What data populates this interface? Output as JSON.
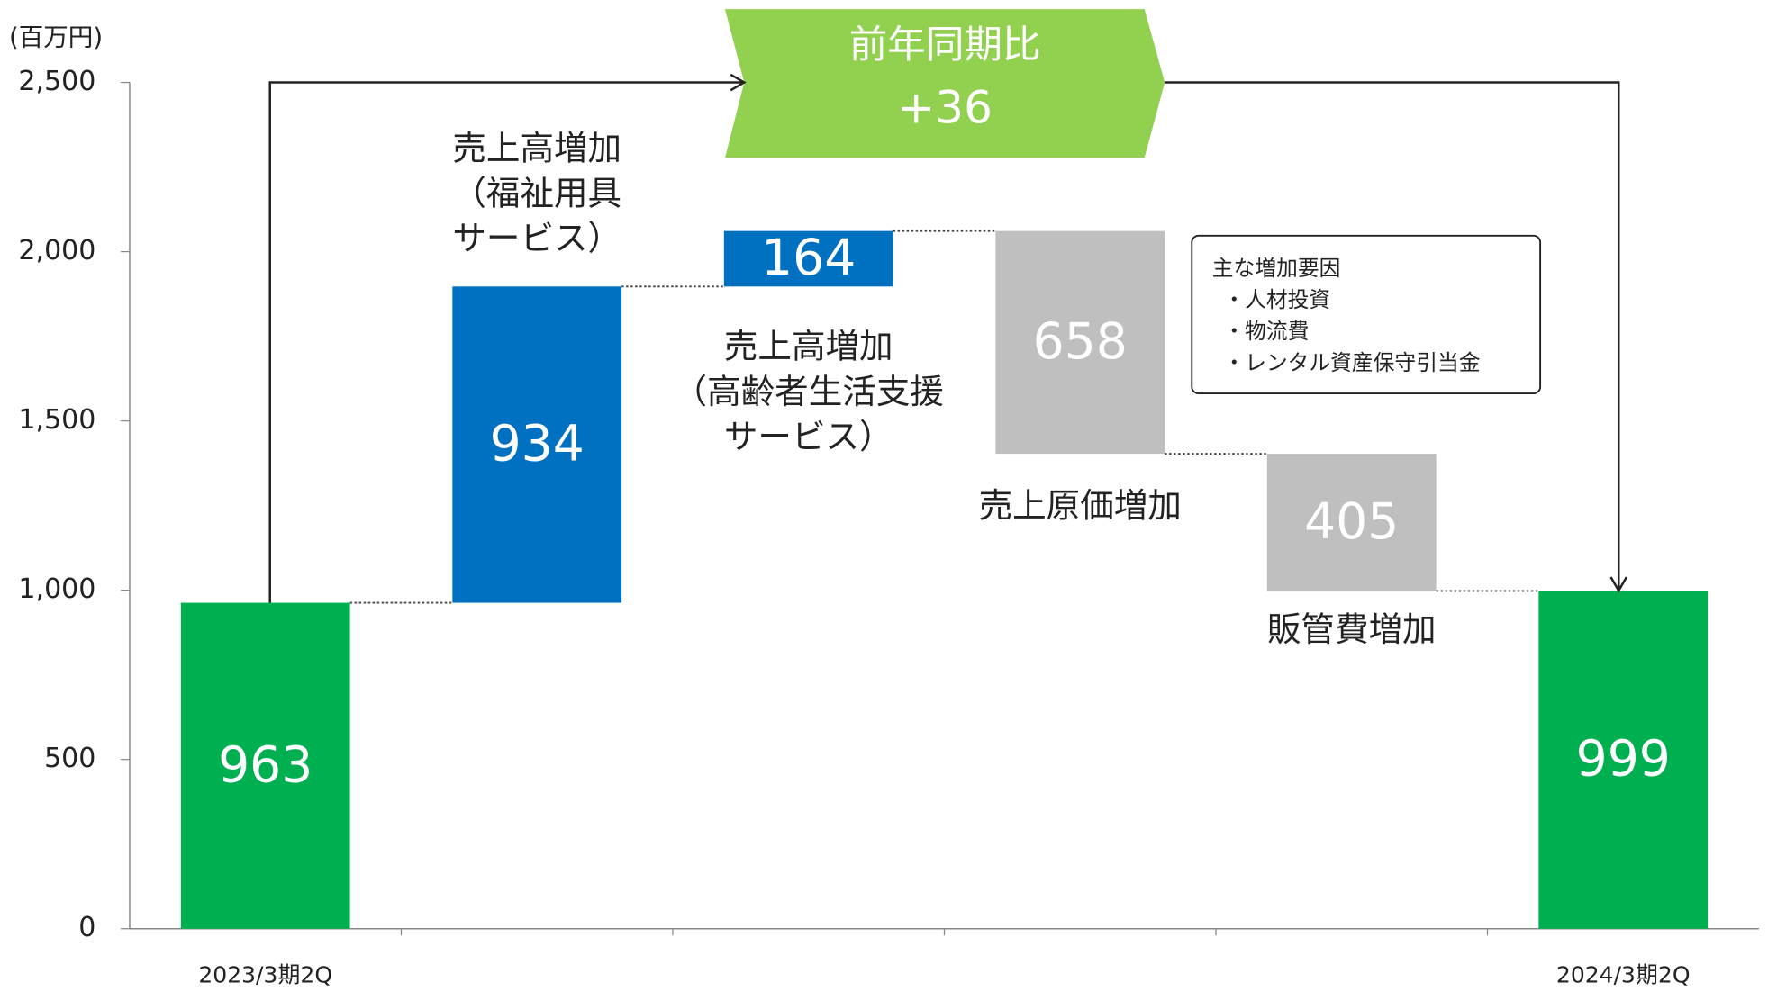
{
  "chart_data": {
    "type": "waterfall",
    "unit_label": "(百万円)",
    "categories": [
      "2023/3期2Q",
      null,
      null,
      null,
      null,
      "2024/3期2Q"
    ],
    "values": [
      963,
      934,
      164,
      658,
      405,
      999
    ],
    "measure": [
      "absolute",
      "increase",
      "increase",
      "decrease",
      "decrease",
      "absolute"
    ],
    "colors": [
      "#00b050",
      "#0070c0",
      "#0070c0",
      "#bfbfbf",
      "#bfbfbf",
      "#00b050"
    ],
    "step_labels": [
      null,
      [
        "売上高増加",
        "（福祉用具",
        " サービス）"
      ],
      [
        "売上高増加",
        "（高齢者生活支援",
        "サービス）"
      ],
      [
        "売上原価増加"
      ],
      [
        "販管費増加"
      ],
      null
    ],
    "ylim": [
      0,
      2500
    ],
    "yticks": [
      0,
      500,
      {
        "value": 1000,
        "label": "1,000"
      },
      {
        "value": 1500,
        "label": "1,500"
      },
      {
        "value": 2000,
        "label": "2,000"
      },
      {
        "value": 2500,
        "label": "2,500"
      }
    ],
    "comparison": {
      "title": "前年同期比",
      "difference": {
        "value": 36,
        "label": "+36"
      }
    },
    "note": {
      "title": "主な増加要因",
      "items": [
        "・人材投資",
        "・物流費",
        "・レンタル資産保守引当金"
      ]
    }
  }
}
